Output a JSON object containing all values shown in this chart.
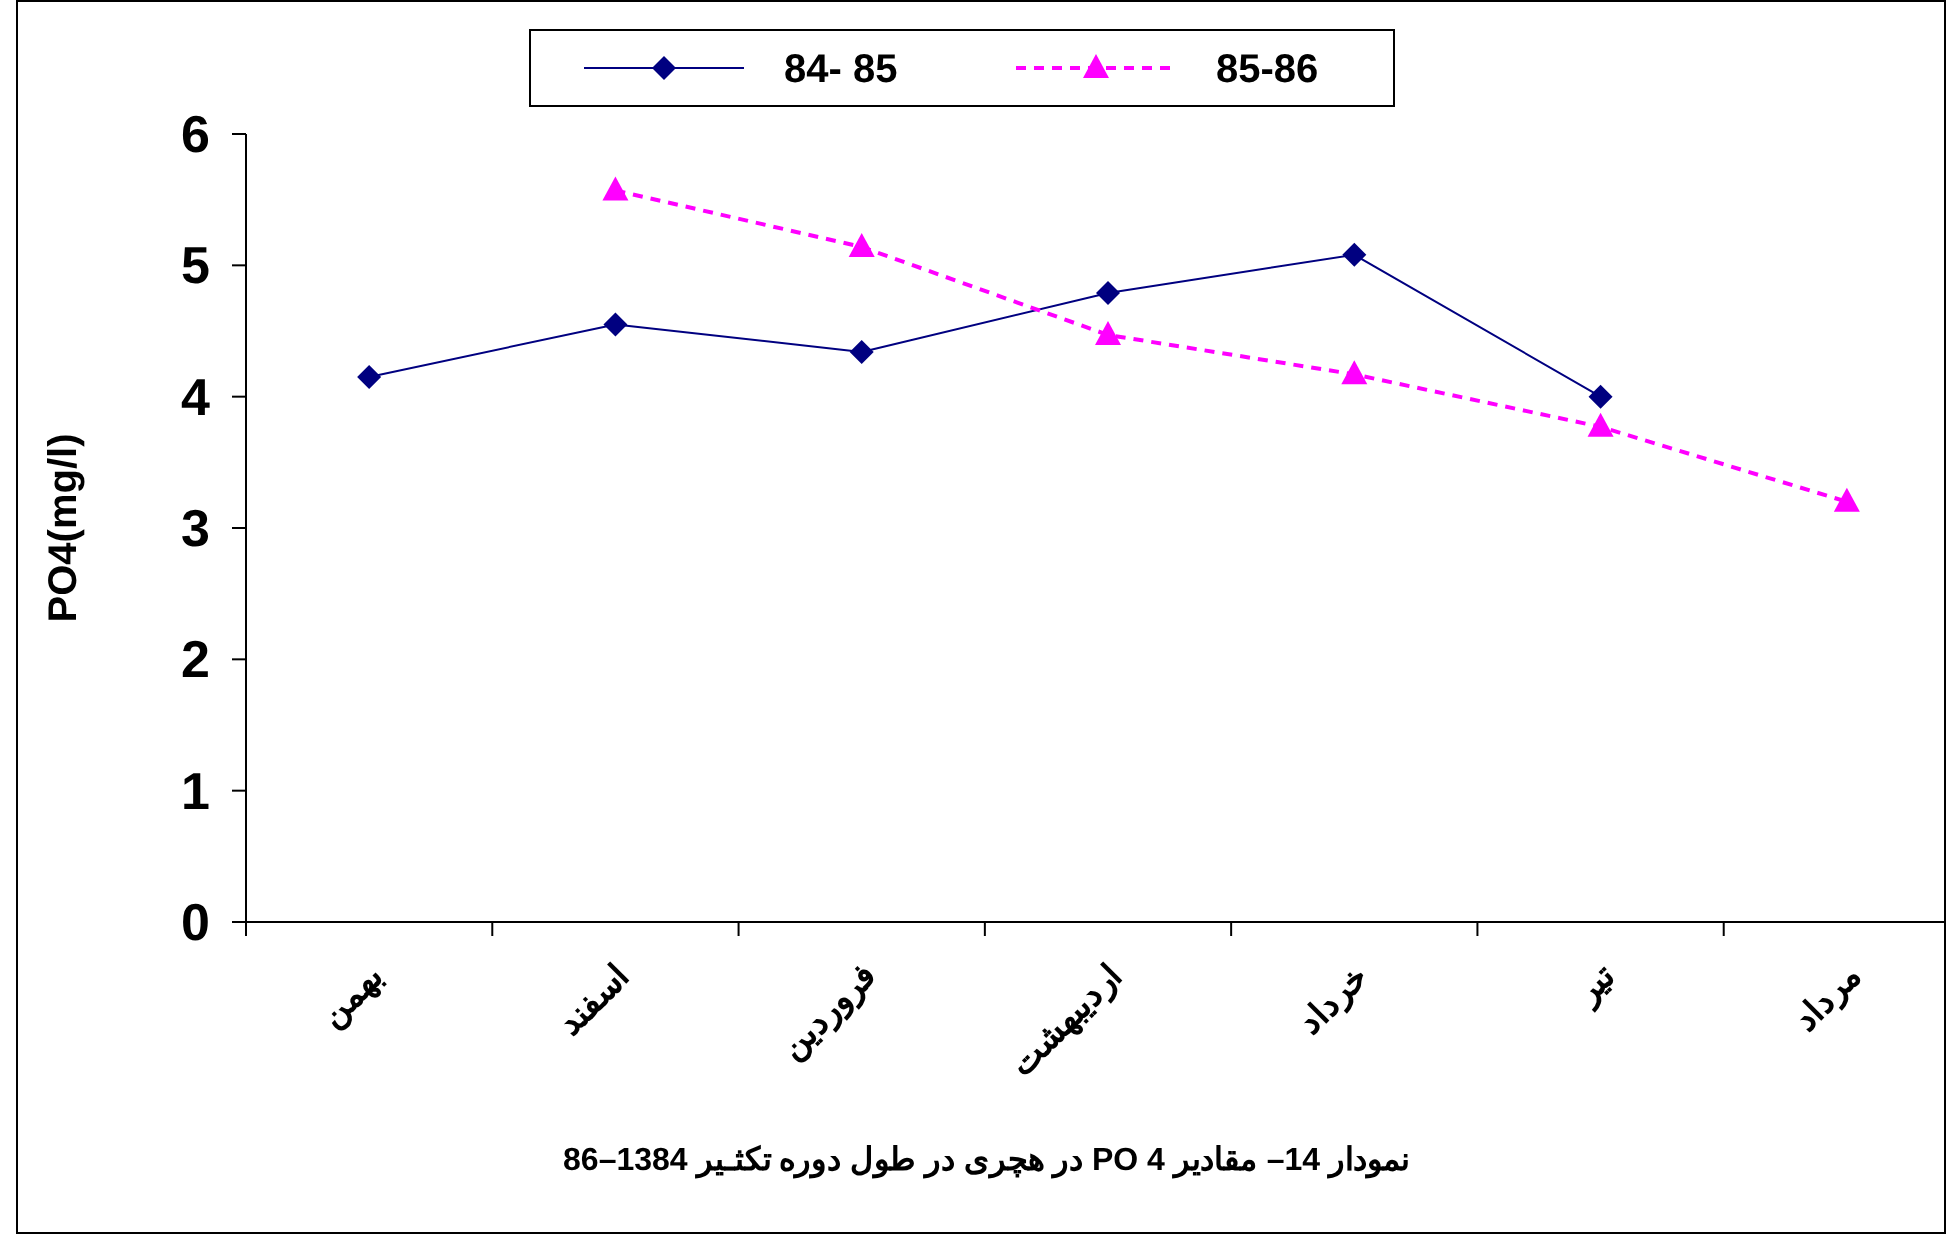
{
  "chart_data": {
    "type": "line",
    "ylabel": "PO4(mg/l)",
    "ylim": [
      0,
      6
    ],
    "yticks": [
      0,
      1,
      2,
      3,
      4,
      5,
      6
    ],
    "categories": [
      "بهمن",
      "اسفند",
      "فروردین",
      "اردیبهشت",
      "خرداد",
      "تیر",
      "مرداد"
    ],
    "series": [
      {
        "name": "84- 85",
        "color": "#000080",
        "marker": "diamond",
        "line_style": "solid",
        "values": [
          4.15,
          4.55,
          4.34,
          4.79,
          5.08,
          4.0,
          null
        ]
      },
      {
        "name": "85-86",
        "color": "#ff00ff",
        "marker": "triangle",
        "line_style": "dashed",
        "values": [
          null,
          5.57,
          5.14,
          4.47,
          4.17,
          3.77,
          3.2
        ]
      }
    ],
    "legend": "top",
    "annotations": [
      "نمودار 14– مقادیر PO 4 در هچری در طول دوره تکثـیر 1384–86"
    ]
  }
}
